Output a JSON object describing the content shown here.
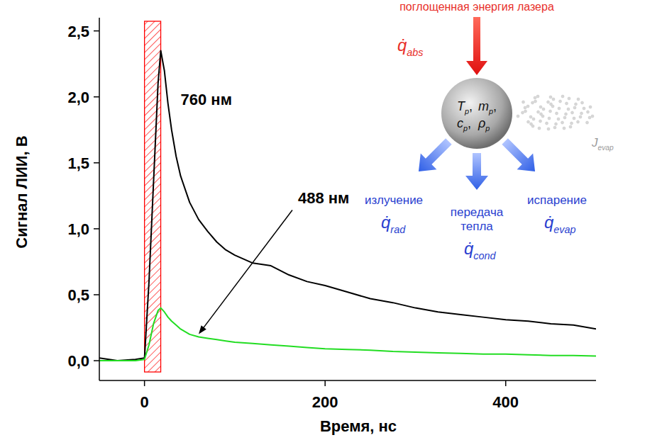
{
  "chart_data": {
    "type": "line",
    "x_label": "Время, нс",
    "y_label": "Сигнал ЛИИ, В",
    "x": [
      -50,
      -30,
      -10,
      0,
      5,
      10,
      15,
      18,
      22,
      26,
      30,
      35,
      40,
      50,
      60,
      70,
      80,
      90,
      100,
      120,
      140,
      160,
      180,
      200,
      225,
      250,
      275,
      300,
      325,
      350,
      375,
      400,
      425,
      450,
      475,
      500
    ],
    "series": [
      {
        "name": "760 нм",
        "color": "#000000",
        "line_style": "solid",
        "values": [
          0.02,
          0.0,
          0.01,
          0.02,
          0.6,
          1.35,
          2.1,
          2.35,
          2.2,
          1.95,
          1.75,
          1.55,
          1.4,
          1.2,
          1.07,
          0.98,
          0.9,
          0.84,
          0.8,
          0.74,
          0.72,
          0.65,
          0.6,
          0.57,
          0.52,
          0.47,
          0.44,
          0.4,
          0.37,
          0.35,
          0.33,
          0.31,
          0.3,
          0.28,
          0.27,
          0.24
        ]
      },
      {
        "name": "488 нм",
        "color": "#22dd22",
        "line_style": "solid",
        "values": [
          0.0,
          0.0,
          0.0,
          0.01,
          0.12,
          0.28,
          0.38,
          0.4,
          0.37,
          0.33,
          0.3,
          0.27,
          0.24,
          0.2,
          0.18,
          0.17,
          0.16,
          0.15,
          0.14,
          0.13,
          0.12,
          0.11,
          0.1,
          0.09,
          0.085,
          0.08,
          0.07,
          0.065,
          0.06,
          0.055,
          0.05,
          0.05,
          0.045,
          0.04,
          0.04,
          0.035
        ]
      }
    ],
    "xlim": [
      -50,
      500
    ],
    "ylim": [
      -0.15,
      2.6
    ],
    "xticks": [
      0,
      200,
      400
    ],
    "yticks": [
      {
        "value": 0,
        "label": "0,0"
      },
      {
        "value": 0.5,
        "label": "0,5"
      },
      {
        "value": 1,
        "label": "1,0"
      },
      {
        "value": 1.5,
        "label": "1,5"
      },
      {
        "value": 2,
        "label": "2,0"
      },
      {
        "value": 2.5,
        "label": "2,5"
      }
    ],
    "grid": false,
    "laser_pulse": {
      "x": [
        0,
        18
      ],
      "color": "#ff0000"
    }
  },
  "diagram": {
    "absorbed_label": "поглощенная энергия лазера",
    "absorbed": {
      "symbol": "q̇",
      "subscript": "abs"
    },
    "particle": [
      [
        {
          "symbol": "T",
          "subscript": "p",
          "suffix": ","
        },
        {
          "symbol": "m",
          "subscript": "p",
          "suffix": ","
        }
      ],
      [
        {
          "symbol": "c",
          "subscript": "p",
          "suffix": ","
        },
        {
          "symbol": "ρ",
          "subscript": "p"
        }
      ]
    ],
    "vapor": {
      "symbol": "J",
      "subscript": "evap"
    },
    "losses": [
      {
        "label": "излучение",
        "symbol": "q̇",
        "subscript": "rad"
      },
      {
        "label": "передача тепла",
        "symbol": "q̇",
        "subscript": "cond"
      },
      {
        "label": "испарение",
        "symbol": "q̇",
        "subscript": "evap"
      }
    ]
  }
}
